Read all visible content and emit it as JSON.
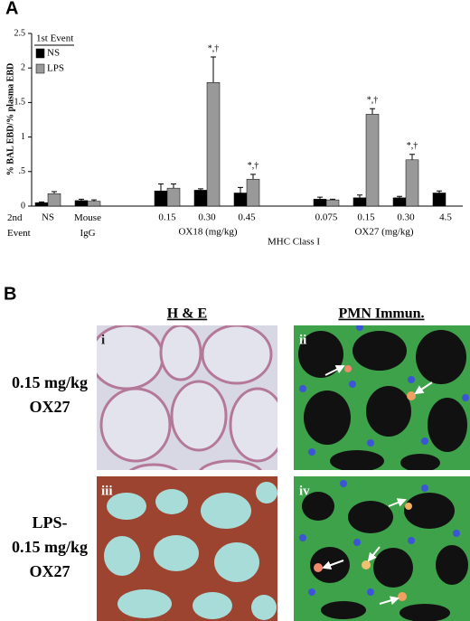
{
  "panel_a_label": "A",
  "chart_data": {
    "type": "bar",
    "ylabel": "% BAL EBD/% plasma EBD",
    "xlabel": "2nd\nEvent",
    "legend_title": "1st Event",
    "categories": [
      "NS",
      "Mouse\nIgG",
      null,
      "0.15",
      "0.30",
      "0.45",
      null,
      "0.075",
      "0.15",
      "0.30",
      "4.5"
    ],
    "group_labels": [
      "OX18 (mg/kg)",
      "MHC Class I",
      "OX27 (mg/kg)"
    ],
    "series": [
      {
        "name": "NS",
        "color": "#000000",
        "values": [
          0.05,
          0.08,
          null,
          0.22,
          0.23,
          0.19,
          null,
          0.1,
          0.12,
          0.12,
          0.19
        ],
        "errors": [
          0.01,
          0.02,
          null,
          0.1,
          0.02,
          0.08,
          null,
          0.03,
          0.04,
          0.02,
          0.03
        ]
      },
      {
        "name": "LPS",
        "color": "#999999",
        "values": [
          0.18,
          0.07,
          null,
          0.26,
          1.79,
          0.39,
          null,
          0.09,
          1.33,
          0.67,
          null
        ],
        "errors": [
          0.03,
          0.02,
          null,
          0.06,
          0.37,
          0.07,
          null,
          0.01,
          0.08,
          0.08,
          null
        ],
        "significance": [
          null,
          null,
          null,
          null,
          "*,†",
          "*,†",
          null,
          null,
          "*,†",
          "*,†",
          null
        ]
      }
    ],
    "ylim": [
      0,
      2.5
    ],
    "yticks": [
      0,
      {
        "value": 0.5,
        "label": ".5"
      },
      1,
      1.5,
      2,
      2.5
    ]
  },
  "panel_b": {
    "label": "B",
    "columns": [
      "H & E",
      "PMN Immun."
    ],
    "rows": [
      "0.15 mg/kg\nOX27",
      "LPS-\n0.15 mg/kg\nOX27"
    ],
    "tags": [
      "i",
      "ii",
      "iii",
      "iv"
    ]
  }
}
